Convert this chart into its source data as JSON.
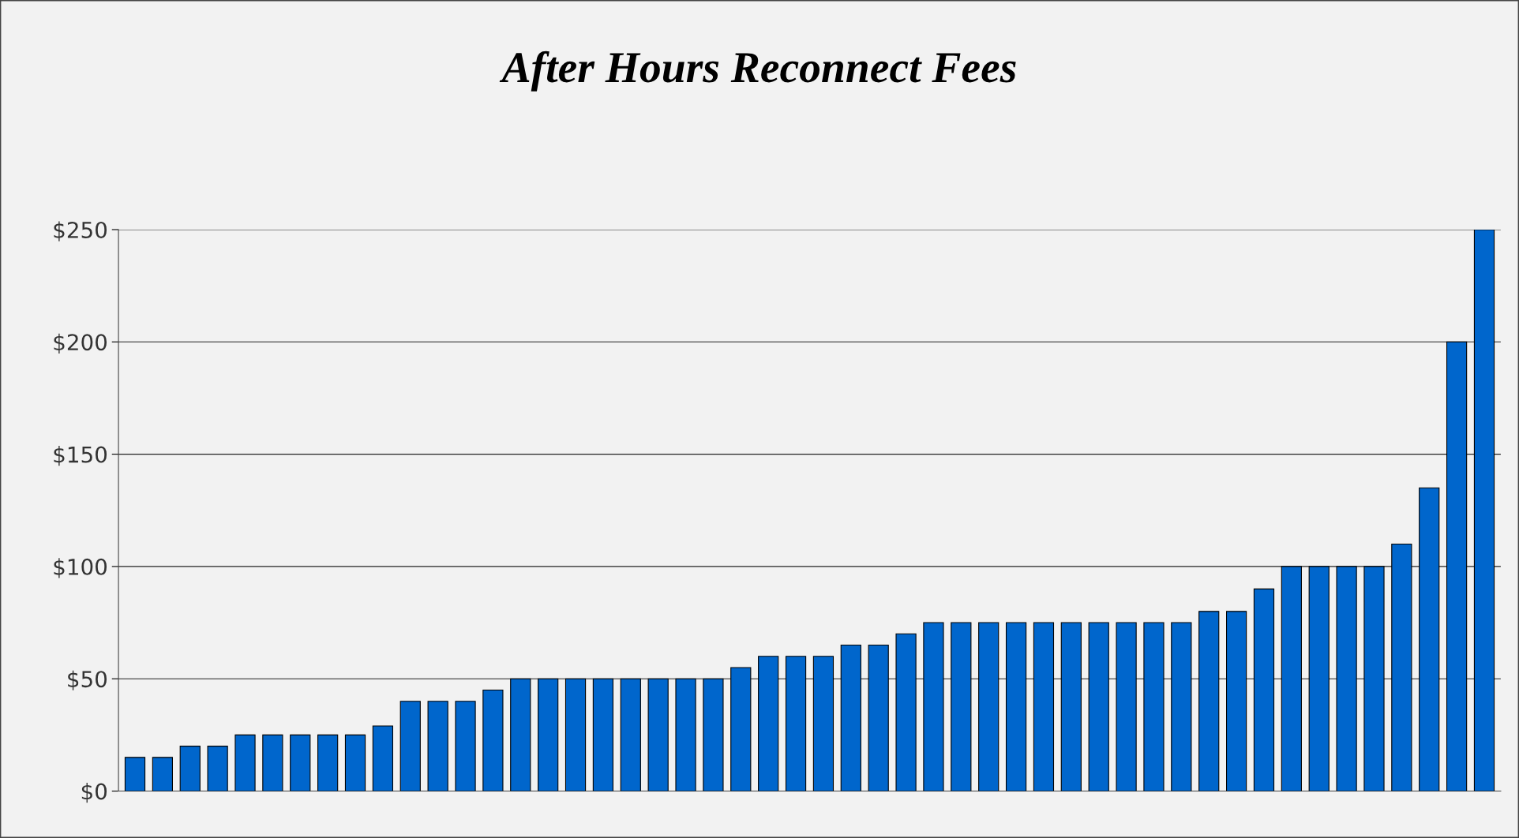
{
  "chart_data": {
    "type": "bar",
    "title": "After Hours Reconnect Fees",
    "categories": [
      null,
      null,
      null,
      null,
      null,
      null,
      null,
      null,
      null,
      null,
      null,
      null,
      null,
      null,
      null,
      null,
      null,
      null,
      null,
      null,
      null,
      null,
      null,
      null,
      null,
      null,
      null,
      null,
      null,
      null,
      null,
      null,
      null,
      null,
      null,
      null,
      null,
      null,
      null,
      null,
      null,
      null,
      null,
      null,
      null,
      null,
      null,
      null,
      null,
      null
    ],
    "values": [
      15,
      15,
      20,
      20,
      25,
      25,
      25,
      25,
      25,
      29,
      40,
      40,
      40,
      45,
      50,
      50,
      50,
      50,
      50,
      50,
      50,
      50,
      55,
      60,
      60,
      60,
      65,
      65,
      70,
      75,
      75,
      75,
      75,
      75,
      75,
      75,
      75,
      75,
      75,
      80,
      80,
      90,
      100,
      100,
      100,
      100,
      110,
      135,
      200,
      250
    ],
    "color": "#0066cc",
    "ylim": [
      0,
      250
    ],
    "yticks": [
      {
        "value": 0,
        "label": "$0"
      },
      {
        "value": 50,
        "label": "$50"
      },
      {
        "value": 100,
        "label": "$100"
      },
      {
        "value": 150,
        "label": "$150"
      },
      {
        "value": 200,
        "label": "$200"
      },
      {
        "value": 250,
        "label": "$250"
      }
    ],
    "grid": "y",
    "tick_labels": "y"
  }
}
